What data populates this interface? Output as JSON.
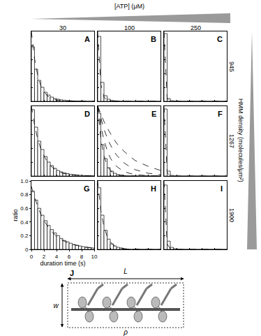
{
  "header": {
    "atp_label": "[ATP] (μM)",
    "columns": [
      30,
      100,
      250
    ],
    "density_label": "HMM density (molecules/μm²)",
    "rows": [
      945,
      1267,
      1900
    ]
  },
  "diagram": {
    "label": "J",
    "length": "L",
    "width": "w",
    "density": "ρ"
  },
  "chart_data": [
    {
      "type": "histogram",
      "title": "A",
      "color": "#ffffff",
      "grid": false,
      "tick_labels": false,
      "bins": [
        0,
        0.5,
        1,
        1.5,
        2,
        2.5,
        3,
        3.5,
        4,
        4.5,
        5,
        5.5,
        6,
        6.5,
        7,
        7.5,
        8,
        8.5,
        9,
        9.5,
        10
      ],
      "values": [
        0.78,
        0.46,
        0.3,
        0.2,
        0.13,
        0.09,
        0.06,
        0.04,
        0.03,
        0.02,
        0.015,
        0.01,
        0.008,
        0.005,
        0.004,
        0.003,
        0.002,
        0,
        0,
        0
      ],
      "fit": {
        "x": [
          0,
          0.5,
          1,
          1.5,
          2,
          2.5,
          3,
          4,
          5,
          6,
          8,
          10
        ],
        "curves": [
          [
            1,
            0.61,
            0.37,
            0.22,
            0.14,
            0.08,
            0.05,
            0.018,
            0.007,
            0.002,
            0,
            0
          ]
        ]
      },
      "line_style": "dash",
      "xlim": [
        0,
        10
      ],
      "ylim": [
        0,
        1
      ],
      "xticks": [
        0,
        2,
        4,
        6,
        8,
        10
      ],
      "yticks": [
        0,
        0.2,
        0.4,
        0.6,
        0.8,
        {
          "value": 1,
          "label": "1.0"
        }
      ]
    },
    {
      "type": "histogram",
      "title": "B",
      "color": "#ffffff",
      "grid": false,
      "tick_labels": false,
      "bins": [
        0,
        0.5,
        1,
        1.5,
        2,
        2.5,
        3,
        3.5,
        4,
        4.5,
        5,
        5.5,
        6,
        6.5,
        7,
        7.5,
        8,
        8.5,
        9,
        9.5,
        10
      ],
      "values": [
        0.93,
        0.27,
        0.08,
        0.03,
        0.012,
        0.006,
        0.003,
        0,
        0,
        0,
        0,
        0,
        0,
        0,
        0,
        0,
        0,
        0,
        0,
        0
      ],
      "fit": {
        "x": [
          0,
          0.5,
          1,
          1.5,
          2,
          2.5,
          3,
          4,
          5,
          6,
          8,
          10
        ],
        "curves": [
          [
            1,
            0.24,
            0.06,
            0.014,
            0.003,
            0,
            0,
            0,
            0,
            0,
            0,
            0
          ]
        ]
      },
      "line_style": "dash",
      "xlim": [
        0,
        10
      ],
      "ylim": [
        0,
        1
      ],
      "xticks": [
        0,
        2,
        4,
        6,
        8,
        10
      ],
      "yticks": [
        0,
        0.2,
        0.4,
        0.6,
        0.8,
        {
          "value": 1,
          "label": "1.0"
        }
      ]
    },
    {
      "type": "histogram",
      "title": "C",
      "color": "#ffffff",
      "grid": false,
      "tick_labels": false,
      "bins": [
        0,
        0.5,
        1,
        1.5,
        2,
        2.5,
        3,
        3.5,
        4,
        4.5,
        5,
        5.5,
        6,
        6.5,
        7,
        7.5,
        8,
        8.5,
        9,
        9.5,
        10
      ],
      "values": [
        0.97,
        0.04,
        0.01,
        0,
        0,
        0,
        0,
        0,
        0,
        0,
        0,
        0,
        0,
        0,
        0,
        0,
        0,
        0,
        0,
        0
      ],
      "fit": {
        "x": [
          0,
          0.5,
          1,
          1.5,
          2,
          2.5,
          3,
          4,
          5,
          6,
          8,
          10
        ],
        "curves": [
          [
            1,
            0.04,
            0,
            0,
            0,
            0,
            0,
            0,
            0,
            0,
            0,
            0
          ]
        ]
      },
      "line_style": "dash",
      "xlim": [
        0,
        10
      ],
      "ylim": [
        0,
        1
      ],
      "xticks": [
        0,
        2,
        4,
        6,
        8,
        10
      ],
      "yticks": [
        0,
        0.2,
        0.4,
        0.6,
        0.8,
        {
          "value": 1,
          "label": "1.0"
        }
      ]
    },
    {
      "type": "histogram",
      "title": "D",
      "color": "#ffffff",
      "grid": false,
      "tick_labels": false,
      "bins": [
        0,
        0.5,
        1,
        1.5,
        2,
        2.5,
        3,
        3.5,
        4,
        4.5,
        5,
        5.5,
        6,
        6.5,
        7,
        7.5,
        8,
        8.5,
        9,
        9.5,
        10
      ],
      "values": [
        0.95,
        0.7,
        0.5,
        0.38,
        0.28,
        0.2,
        0.15,
        0.11,
        0.08,
        0.06,
        0.045,
        0.035,
        0.025,
        0.02,
        0.015,
        0.01,
        0.008,
        0.005,
        0.004,
        0.003
      ],
      "fit": {
        "x": [
          0,
          0.5,
          1,
          1.5,
          2,
          2.5,
          3,
          4,
          5,
          6,
          8,
          10
        ],
        "curves": [
          [
            1,
            0.73,
            0.53,
            0.39,
            0.29,
            0.21,
            0.15,
            0.08,
            0.04,
            0.02,
            0.007,
            0.002
          ]
        ]
      },
      "line_style": "dash",
      "xlim": [
        0,
        10
      ],
      "ylim": [
        0,
        1
      ],
      "xticks": [
        0,
        2,
        4,
        6,
        8,
        10
      ],
      "yticks": [
        0,
        0.2,
        0.4,
        0.6,
        0.8,
        {
          "value": 1,
          "label": "1.0"
        }
      ]
    },
    {
      "type": "histogram",
      "title": "E",
      "color": "#ffffff",
      "grid": false,
      "tick_labels": false,
      "bins": [
        0,
        0.5,
        1,
        1.5,
        2,
        2.5,
        3,
        3.5,
        4,
        4.5,
        5,
        5.5,
        6,
        6.5,
        7,
        7.5,
        8,
        8.5,
        9,
        9.5,
        10
      ],
      "values": [
        0.9,
        0.45,
        0.25,
        0.12,
        0.07,
        0.04,
        0.02,
        0.01,
        0.006,
        0.003,
        0,
        0,
        0,
        0,
        0,
        0,
        0,
        0,
        0,
        0
      ],
      "fit": {
        "x": [
          0,
          0.5,
          1,
          1.5,
          2,
          2.5,
          3,
          4,
          5,
          6,
          8,
          10
        ],
        "curves": [
          [
            1,
            0.53,
            0.29,
            0.15,
            0.08,
            0.04,
            0.02,
            0.007,
            0.002,
            0,
            0,
            0
          ],
          [
            1,
            0.72,
            0.51,
            0.37,
            0.26,
            0.19,
            0.14,
            0.07,
            0.04,
            0.02,
            0.005,
            0.001
          ],
          [
            1,
            0.82,
            0.67,
            0.55,
            0.45,
            0.37,
            0.3,
            0.2,
            0.14,
            0.09,
            0.04,
            0.02
          ],
          [
            1,
            0.88,
            0.78,
            0.69,
            0.61,
            0.54,
            0.47,
            0.37,
            0.29,
            0.22,
            0.14,
            0.08
          ]
        ]
      },
      "line_style": "dash",
      "xlim": [
        0,
        10
      ],
      "ylim": [
        0,
        1
      ],
      "xticks": [
        0,
        2,
        4,
        6,
        8,
        10
      ],
      "yticks": [
        0,
        0.2,
        0.4,
        0.6,
        0.8,
        {
          "value": 1,
          "label": "1.0"
        }
      ]
    },
    {
      "type": "histogram",
      "title": "F",
      "color": "#ffffff",
      "grid": false,
      "tick_labels": false,
      "bins": [
        0,
        0.5,
        1,
        1.5,
        2,
        2.5,
        3,
        3.5,
        4,
        4.5,
        5,
        5.5,
        6,
        6.5,
        7,
        7.5,
        8,
        8.5,
        9,
        9.5,
        10
      ],
      "values": [
        0.96,
        0.07,
        0.01,
        0,
        0,
        0,
        0,
        0,
        0,
        0,
        0,
        0,
        0,
        0,
        0,
        0,
        0,
        0,
        0,
        0
      ],
      "fit": {
        "x": [
          0,
          0.5,
          1,
          1.5,
          2,
          2.5,
          3,
          4,
          5,
          6,
          8,
          10
        ],
        "curves": [
          [
            1,
            0.05,
            0,
            0,
            0,
            0,
            0,
            0,
            0,
            0,
            0,
            0
          ]
        ]
      },
      "line_style": "dash",
      "xlim": [
        0,
        10
      ],
      "ylim": [
        0,
        1
      ],
      "xticks": [
        0,
        2,
        4,
        6,
        8,
        10
      ],
      "yticks": [
        0,
        0.2,
        0.4,
        0.6,
        0.8,
        {
          "value": 1,
          "label": "1.0"
        }
      ]
    },
    {
      "type": "histogram",
      "title": "G",
      "color": "#ffffff",
      "grid": false,
      "x_label": "duration time (s)",
      "y_label": "ratio",
      "bins": [
        0,
        0.5,
        1,
        1.5,
        2,
        2.5,
        3,
        3.5,
        4,
        4.5,
        5,
        5.5,
        6,
        6.5,
        7,
        7.5,
        8,
        8.5,
        9,
        9.5,
        10
      ],
      "values": [
        0.85,
        0.72,
        0.6,
        0.5,
        0.42,
        0.35,
        0.29,
        0.24,
        0.2,
        0.16,
        0.13,
        0.11,
        0.09,
        0.07,
        0.06,
        0.05,
        0.04,
        0.03,
        0.025,
        0.02
      ],
      "fit": {
        "x": [
          0,
          0.5,
          1,
          1.5,
          2,
          2.5,
          3,
          4,
          5,
          6,
          8,
          10
        ],
        "curves": [
          [
            0.92,
            0.76,
            0.63,
            0.51,
            0.42,
            0.35,
            0.28,
            0.19,
            0.13,
            0.09,
            0.04,
            0.02
          ]
        ]
      },
      "line_style": "dash",
      "xlim": [
        0,
        10
      ],
      "ylim": [
        0,
        1
      ],
      "xticks": [
        0,
        2,
        4,
        6,
        8,
        10
      ],
      "yticks": [
        0,
        0.2,
        0.4,
        0.6,
        0.8,
        {
          "value": 1,
          "label": "1.0"
        }
      ]
    },
    {
      "type": "histogram",
      "title": "H",
      "color": "#ffffff",
      "grid": false,
      "tick_labels": false,
      "bins": [
        0,
        0.5,
        1,
        1.5,
        2,
        2.5,
        3,
        3.5,
        4,
        4.5,
        5,
        5.5,
        6,
        6.5,
        7,
        7.5,
        8,
        8.5,
        9,
        9.5,
        10
      ],
      "values": [
        0.9,
        0.5,
        0.28,
        0.15,
        0.08,
        0.05,
        0.03,
        0.02,
        0.01,
        0.005,
        0,
        0,
        0,
        0,
        0,
        0,
        0,
        0,
        0,
        0
      ],
      "fit": {
        "x": [
          0,
          0.5,
          1,
          1.5,
          2,
          2.5,
          3,
          4,
          5,
          6,
          8,
          10
        ],
        "curves": [
          [
            1,
            0.57,
            0.33,
            0.19,
            0.11,
            0.06,
            0.04,
            0.01,
            0.004,
            0.001,
            0,
            0
          ]
        ]
      },
      "line_style": "dash",
      "xlim": [
        0,
        10
      ],
      "ylim": [
        0,
        1
      ],
      "xticks": [
        0,
        2,
        4,
        6,
        8,
        10
      ],
      "yticks": [
        0,
        0.2,
        0.4,
        0.6,
        0.8,
        {
          "value": 1,
          "label": "1.0"
        }
      ]
    },
    {
      "type": "histogram",
      "title": "I",
      "color": "#ffffff",
      "grid": false,
      "tick_labels": false,
      "bins": [
        0,
        0.5,
        1,
        1.5,
        2,
        2.5,
        3,
        3.5,
        4,
        4.5,
        5,
        5.5,
        6,
        6.5,
        7,
        7.5,
        8,
        8.5,
        9,
        9.5,
        10
      ],
      "values": [
        0.94,
        0.12,
        0.03,
        0.01,
        0,
        0,
        0,
        0,
        0,
        0,
        0,
        0,
        0,
        0,
        0,
        0,
        0,
        0,
        0,
        0
      ],
      "fit": {
        "x": [
          0,
          0.5,
          1,
          1.5,
          2,
          2.5,
          3,
          4,
          5,
          6,
          8,
          10
        ],
        "curves": [
          [
            1,
            0.08,
            0.01,
            0,
            0,
            0,
            0,
            0,
            0,
            0,
            0,
            0
          ]
        ]
      },
      "line_style": "dash",
      "xlim": [
        0,
        10
      ],
      "ylim": [
        0,
        1
      ],
      "xticks": [
        0,
        2,
        4,
        6,
        8,
        10
      ],
      "yticks": [
        0,
        0.2,
        0.4,
        0.6,
        0.8,
        {
          "value": 1,
          "label": "1.0"
        }
      ]
    }
  ]
}
